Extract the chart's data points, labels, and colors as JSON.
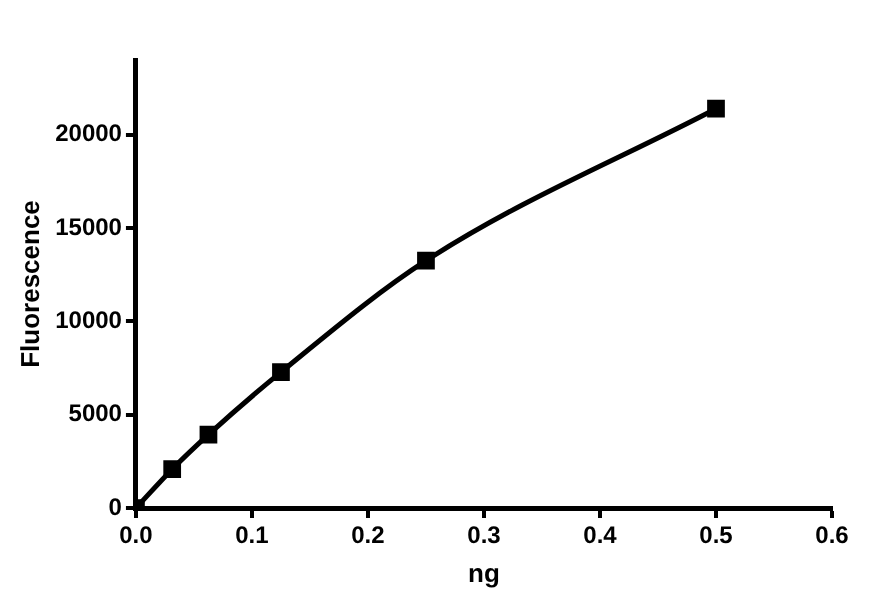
{
  "chart_data": {
    "type": "line",
    "xlabel": "ng",
    "ylabel": "Fluorescence",
    "x": [
      0,
      0.03125,
      0.0625,
      0.125,
      0.25,
      0.5
    ],
    "series": [
      {
        "color": "#000000",
        "values": [
          0,
          2080,
          3930,
          7280,
          13250,
          21390
        ]
      }
    ],
    "xlim": [
      0,
      0.6
    ],
    "xticks": [
      {
        "value": 0,
        "label": "0.0"
      },
      0.1,
      0.2,
      0.3,
      0.4,
      0.5,
      0.6
    ],
    "ylim": [
      0,
      24000
    ],
    "yticks": [
      0,
      5000,
      10000,
      15000,
      20000
    ],
    "grid": false,
    "legend": false,
    "marker": "square",
    "line_style": "solid"
  }
}
